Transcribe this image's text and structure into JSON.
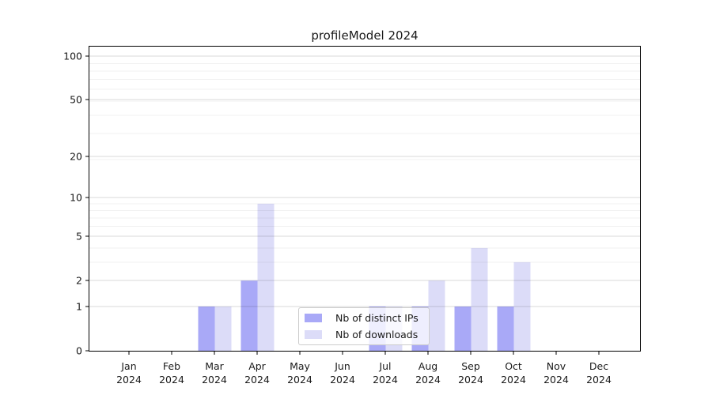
{
  "chart_data": {
    "type": "bar",
    "title": "profileModel 2024",
    "categories": [
      "Jan",
      "Feb",
      "Mar",
      "Apr",
      "May",
      "Jun",
      "Jul",
      "Aug",
      "Sep",
      "Oct",
      "Nov",
      "Dec"
    ],
    "category_year": "2024",
    "series": [
      {
        "name": "Nb of distinct IPs",
        "color": "#a9a9f7",
        "values": [
          0,
          0,
          1,
          2,
          0,
          0,
          1,
          1,
          1,
          1,
          0,
          0
        ]
      },
      {
        "name": "Nb of downloads",
        "color": "#dcdcf8",
        "values": [
          0,
          0,
          1,
          9,
          0,
          0,
          1,
          2,
          4,
          3,
          0,
          0
        ]
      }
    ],
    "xlabel": "",
    "ylabel": "",
    "yscale": "log1p",
    "yticks": [
      0,
      1,
      2,
      5,
      10,
      20,
      50,
      100
    ],
    "ytick_labels": [
      "0",
      "1",
      "2",
      "5",
      "10",
      "20",
      "50",
      "100"
    ],
    "minor_gridline_values": [
      3,
      4,
      6,
      7,
      8,
      9,
      19,
      29,
      39,
      49,
      59,
      69,
      79,
      89
    ],
    "grid": true,
    "legend_position": "lower center inside plot",
    "colors": {
      "major_grid": "rgba(0,0,0,0.15)",
      "minor_grid": "rgba(0,0,0,0.055)",
      "spine": "#000000",
      "text": "#1a1a1a",
      "legend_border": "#cccccc",
      "legend_background": "rgba(255,255,255,0.8)"
    }
  }
}
